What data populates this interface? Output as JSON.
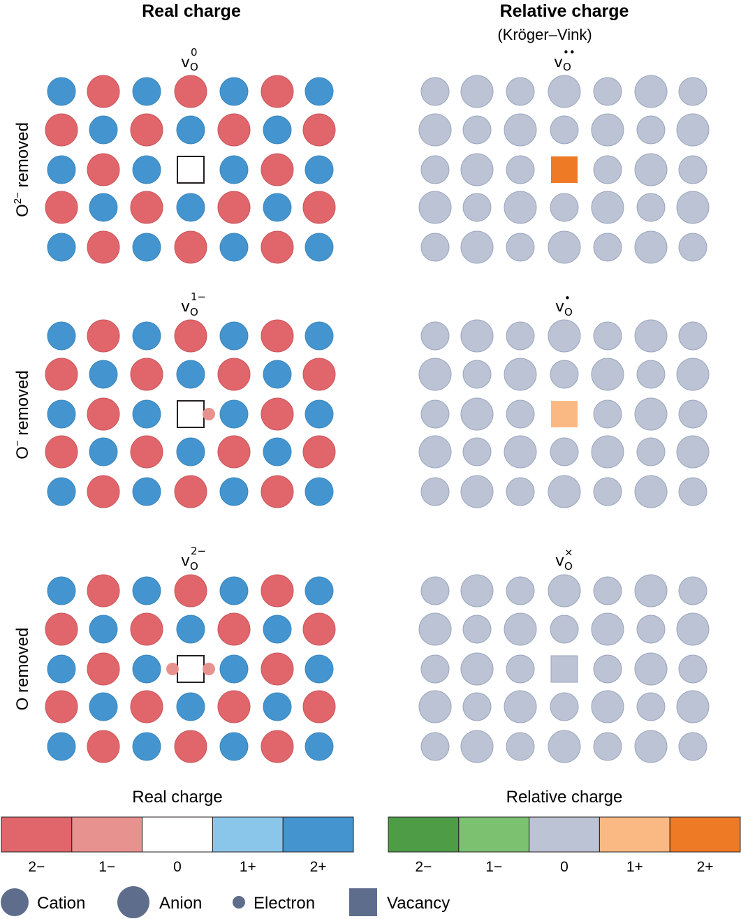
{
  "columns": [
    {
      "title": "Real charge",
      "subtitle": ""
    },
    {
      "title": "Relative charge",
      "subtitle": "(Kröger–Vink)"
    }
  ],
  "rows": [
    {
      "label_base": "O",
      "label_sup": "2−",
      "label_rest": " removed",
      "real_symbol": {
        "base": "v",
        "sub": "O",
        "sup": "0"
      },
      "rel_symbol": {
        "base": "v",
        "sub": "O",
        "sup": "••"
      },
      "electrons": 0,
      "relative_state": "2+"
    },
    {
      "label_base": "O",
      "label_sup": "−",
      "label_rest": " removed",
      "real_symbol": {
        "base": "v",
        "sub": "O",
        "sup": "1−"
      },
      "rel_symbol": {
        "base": "v",
        "sub": "O",
        "sup": "•"
      },
      "electrons": 1,
      "relative_state": "1+"
    },
    {
      "label_base": "O",
      "label_sup": "",
      "label_rest": " removed",
      "real_symbol": {
        "base": "v",
        "sub": "O",
        "sup": "2−"
      },
      "rel_symbol": {
        "base": "v",
        "sub": "O",
        "sup": "×"
      },
      "electrons": 2,
      "relative_state": "0"
    }
  ],
  "scales": [
    {
      "title": "Real charge",
      "segments": [
        {
          "label": "2−",
          "color": "#e0666b"
        },
        {
          "label": "1−",
          "color": "#e8928f"
        },
        {
          "label": "0",
          "color": "#ffffff"
        },
        {
          "label": "1+",
          "color": "#8ac6ea"
        },
        {
          "label": "2+",
          "color": "#4495cf"
        }
      ]
    },
    {
      "title": "Relative charge",
      "segments": [
        {
          "label": "2−",
          "color": "#4e9c46"
        },
        {
          "label": "1−",
          "color": "#7bc170"
        },
        {
          "label": "0",
          "color": "#bbc3d4"
        },
        {
          "label": "1+",
          "color": "#fab982"
        },
        {
          "label": "2+",
          "color": "#ef7a25"
        }
      ]
    }
  ],
  "legend": [
    {
      "label": "Cation",
      "shape": "circle-medium"
    },
    {
      "label": "Anion",
      "shape": "circle-large"
    },
    {
      "label": "Electron",
      "shape": "circle-small"
    },
    {
      "label": "Vacancy",
      "shape": "square"
    }
  ],
  "colors": {
    "cation_real": "#4495cf",
    "anion_real": "#e0666b",
    "electron_real": "#e8928f",
    "neutral": "#bbc3d4",
    "neutral_stroke": "#9aa5bd",
    "legend_icon": "#5f6d8c",
    "text": "#231f20"
  }
}
